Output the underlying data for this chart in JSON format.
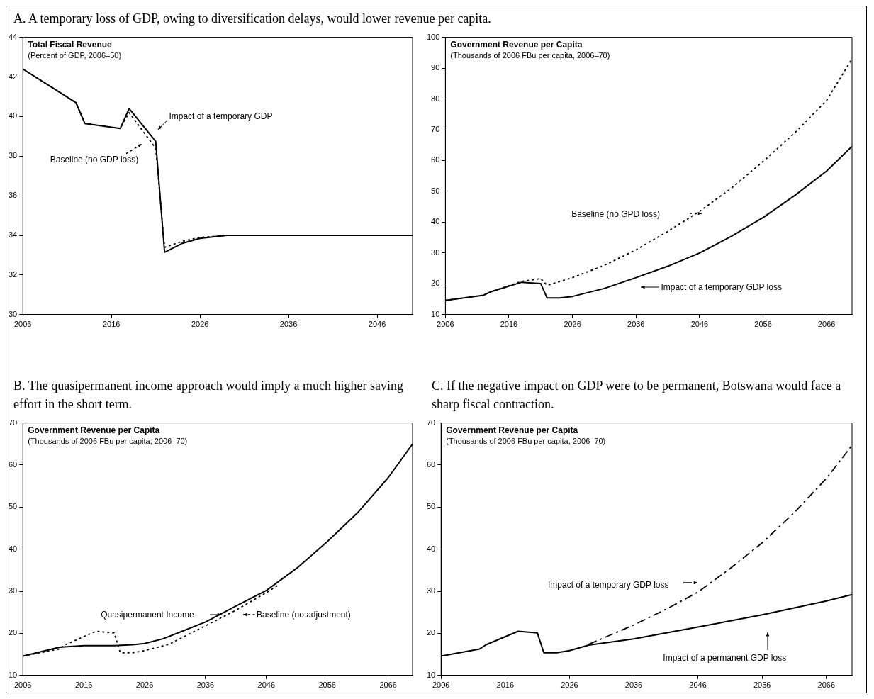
{
  "chart_data": [
    {
      "type": "line",
      "title": "Total Fiscal Revenue",
      "subtitle": "(Percent of GDP, 2006–50)",
      "annotations": [
        "A. A temporary loss of GDP, owing to diversification delays, would lower revenue per capita."
      ],
      "xlim": [
        2006,
        2050
      ],
      "xticks": [
        2006,
        2016,
        2026,
        2036,
        2046
      ],
      "ylim": [
        30,
        44
      ],
      "yticks": [
        30,
        32,
        34,
        36,
        38,
        40,
        42,
        44
      ],
      "series": [
        {
          "name": "Impact of a temporary GDP",
          "color": "#000000",
          "line_style": "solid",
          "x": [
            2006,
            2012,
            2013,
            2017,
            2018,
            2021,
            2022,
            2024,
            2026,
            2029,
            2050
          ],
          "values": [
            42.4,
            40.7,
            39.65,
            39.4,
            40.4,
            38.75,
            33.15,
            33.6,
            33.85,
            34.0,
            34.0
          ]
        },
        {
          "name": "Baseline (no GDP loss)",
          "color": "#000000",
          "line_style": "dotted",
          "x": [
            2006,
            2012,
            2013,
            2017,
            2018,
            2021,
            2022,
            2024,
            2026,
            2029,
            2050
          ],
          "values": [
            42.4,
            40.7,
            39.65,
            39.4,
            40.2,
            38.4,
            33.4,
            33.7,
            33.9,
            34.0,
            34.0
          ]
        }
      ]
    },
    {
      "type": "line",
      "title": "Government Revenue per Capita",
      "subtitle": "(Thousands of 2006 FBu per capita, 2006–70)",
      "xlim": [
        2006,
        2070
      ],
      "xticks": [
        2006,
        2016,
        2026,
        2036,
        2046,
        2056,
        2066
      ],
      "ylim": [
        10,
        100
      ],
      "yticks": [
        10,
        20,
        30,
        40,
        50,
        60,
        70,
        80,
        90,
        100
      ],
      "series": [
        {
          "name": "Impact of a temporary GDP loss",
          "color": "#000000",
          "line_style": "solid",
          "x": [
            2006,
            2012,
            2013,
            2018,
            2021,
            2022,
            2024,
            2026,
            2031,
            2036,
            2041,
            2046,
            2051,
            2056,
            2061,
            2066,
            2070
          ],
          "values": [
            14.6,
            16.3,
            17.3,
            20.5,
            20.1,
            15.4,
            15.4,
            15.9,
            18.5,
            22.0,
            25.7,
            30.0,
            35.4,
            41.5,
            48.7,
            56.6,
            64.6
          ]
        },
        {
          "name": "Baseline (no GPD loss)",
          "color": "#000000",
          "line_style": "dotted",
          "x": [
            2006,
            2012,
            2013,
            2018,
            2021,
            2022,
            2026,
            2031,
            2036,
            2041,
            2046,
            2051,
            2056,
            2061,
            2066,
            2070
          ],
          "values": [
            14.6,
            16.3,
            17.3,
            20.8,
            21.7,
            19.5,
            22.0,
            26.0,
            31.0,
            37.0,
            43.5,
            51.0,
            59.7,
            69.0,
            79.5,
            93.0
          ]
        }
      ]
    },
    {
      "type": "line",
      "title": "Government Revenue per Capita",
      "subtitle": "(Thousands of 2006 FBu per capita, 2006–70)",
      "annotations": [
        "B. The quasipermanent income approach would imply a much higher saving effort in the short term."
      ],
      "xlim": [
        2006,
        2070
      ],
      "xticks": [
        2006,
        2016,
        2026,
        2036,
        2046,
        2056,
        2066
      ],
      "ylim": [
        10,
        70
      ],
      "yticks": [
        10,
        20,
        30,
        40,
        50,
        60,
        70
      ],
      "series": [
        {
          "name": "Quasipermanent Income",
          "color": "#000000",
          "line_style": "solid",
          "x": [
            2006,
            2012,
            2016,
            2021,
            2024,
            2026,
            2029,
            2036,
            2041,
            2046,
            2051,
            2056,
            2061,
            2066,
            2070
          ],
          "values": [
            14.6,
            16.7,
            17.1,
            17.1,
            17.3,
            17.6,
            18.7,
            22.7,
            26.5,
            30.2,
            35.5,
            41.8,
            48.7,
            57.0,
            65.0
          ]
        },
        {
          "name": "Baseline (no adjustment)",
          "color": "#000000",
          "line_style": "dotted",
          "x": [
            2006,
            2012,
            2013,
            2018,
            2021,
            2022,
            2024,
            2026,
            2030,
            2036,
            2041,
            2046,
            2048
          ],
          "values": [
            14.6,
            16.3,
            17.3,
            20.5,
            20.1,
            15.4,
            15.4,
            15.9,
            17.4,
            21.8,
            25.5,
            29.7,
            31.5
          ]
        }
      ]
    },
    {
      "type": "line",
      "title": "Government Revenue per Capita",
      "subtitle": "(Thousands of 2006 FBu per capita, 2006–70)",
      "annotations": [
        "C. If the negative impact on GDP were to be permanent, Botswana would face a sharp fiscal contraction."
      ],
      "xlim": [
        2006,
        2070
      ],
      "xticks": [
        2006,
        2016,
        2026,
        2036,
        2046,
        2056,
        2066
      ],
      "ylim": [
        10,
        70
      ],
      "yticks": [
        10,
        20,
        30,
        40,
        50,
        60,
        70
      ],
      "series": [
        {
          "name": "Impact of a permanent GDP loss",
          "color": "#000000",
          "line_style": "solid",
          "x": [
            2006,
            2012,
            2013,
            2018,
            2021,
            2022,
            2024,
            2026,
            2029,
            2036,
            2046,
            2056,
            2066,
            2070
          ],
          "values": [
            14.6,
            16.3,
            17.3,
            20.5,
            20.1,
            15.4,
            15.4,
            15.9,
            17.2,
            18.7,
            21.5,
            24.4,
            27.7,
            29.2
          ]
        },
        {
          "name": "Impact of a temporary GDP loss",
          "color": "#000000",
          "line_style": "dashed",
          "x": [
            2029,
            2031,
            2036,
            2041,
            2046,
            2051,
            2056,
            2061,
            2066,
            2070
          ],
          "values": [
            17.4,
            18.7,
            22.0,
            25.7,
            29.8,
            35.4,
            41.5,
            48.7,
            56.8,
            64.7
          ]
        }
      ]
    }
  ]
}
